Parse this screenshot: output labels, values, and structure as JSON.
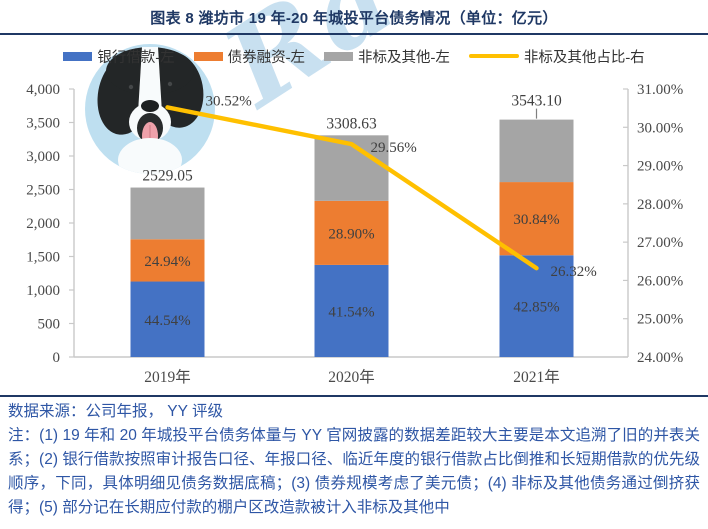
{
  "header": {
    "title": "图表 8 潍坊市 19 年-20 年城投平台债务情况（单位：亿元）"
  },
  "legend": {
    "items": [
      {
        "label": "银行借款-左",
        "color": "#4472C4",
        "shape": "box"
      },
      {
        "label": "债券融资-左",
        "color": "#ED7D31",
        "shape": "box"
      },
      {
        "label": "非标及其他-左",
        "color": "#A5A5A5",
        "shape": "box"
      },
      {
        "label": "非标及其他占比-右",
        "color": "#FFC000",
        "shape": "line"
      }
    ]
  },
  "chart_data": {
    "type": "bar",
    "subtype": "stacked-bar-with-line",
    "unit": "亿元",
    "categories": [
      "2019年",
      "2020年",
      "2021年"
    ],
    "series": [
      {
        "name": "银行借款-左",
        "axis": "left",
        "color": "#4472C4",
        "values": [
          1126.44,
          1374.41,
          1518.22
        ],
        "labels": [
          "44.54%",
          "41.54%",
          "42.85%"
        ]
      },
      {
        "name": "债券融资-左",
        "axis": "left",
        "color": "#ED7D31",
        "values": [
          630.75,
          956.19,
          1092.69
        ],
        "labels": [
          "24.94%",
          "28.90%",
          "30.84%"
        ]
      },
      {
        "name": "非标及其他-左",
        "axis": "left",
        "color": "#A5A5A5",
        "values": [
          771.86,
          978.03,
          932.19
        ],
        "labels": [
          "",
          "",
          ""
        ]
      }
    ],
    "totals": {
      "values": [
        2529.05,
        3308.63,
        3543.1
      ],
      "labels": [
        "2529.05",
        "3308.63",
        "3543.10"
      ]
    },
    "line": {
      "name": "非标及其他占比-右",
      "axis": "right",
      "color": "#FFC000",
      "values": [
        30.52,
        29.56,
        26.32
      ],
      "labels": [
        "30.52%",
        "29.56%",
        "26.32%"
      ]
    },
    "left_axis": {
      "min": 0,
      "max": 4000,
      "step": 500,
      "ticks": [
        "4,000",
        "3,500",
        "3,000",
        "2,500",
        "2,000",
        "1,500",
        "1,000",
        "500",
        "0"
      ]
    },
    "right_axis": {
      "min": 24,
      "max": 31,
      "step": 1,
      "ticks": [
        "31.00%",
        "30.00%",
        "29.00%",
        "28.00%",
        "27.00%",
        "26.00%",
        "25.00%",
        "24.00%"
      ]
    },
    "grid": false,
    "legend_position": "top"
  },
  "watermark": {
    "ra_text": "Ra"
  },
  "footer": {
    "source": "数据来源：公司年报， YY 评级",
    "note": "注：(1) 19 年和 20 年城投平台债务体量与 YY 官网披露的数据差距较大主要是本文追溯了旧的并表关系；(2) 银行借款按照审计报告口径、年报口径、临近年度的银行借款占比倒推和长短期借款的优先级顺序，下同，具体明细见债务数据底稿；(3) 债券规模考虑了美元债；(4) 非标及其他债务通过倒挤获得；(5) 部分记在长期应付款的棚户区改造款被计入非标及其他中"
  },
  "colors": {
    "title_navy": "#1F3864",
    "note_blue": "#2E56A5",
    "axis_gray": "#C9C9C9",
    "tick_text": "#4A4A4A",
    "data_label": "#404040"
  }
}
